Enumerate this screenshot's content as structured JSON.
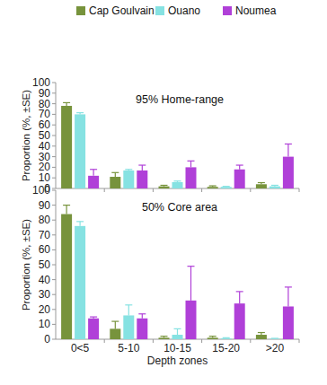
{
  "chart_data": [
    {
      "type": "bar",
      "title": "95% Home-range",
      "categories": [
        "0<5",
        "5-10",
        "10-15",
        "15-20",
        ">20"
      ],
      "series": [
        {
          "name": "Cap Goulvain",
          "color": "#77933c",
          "values": [
            78,
            11,
            2,
            1.5,
            4
          ],
          "errors": [
            3,
            4,
            1,
            1,
            1.5
          ]
        },
        {
          "name": "Ouano",
          "color": "#86e2e2",
          "values": [
            70,
            17,
            6,
            1.5,
            2
          ],
          "errors": [
            1.5,
            1,
            1,
            0.5,
            1
          ]
        },
        {
          "name": "Noumea",
          "color": "#b040d8",
          "values": [
            12,
            17,
            20,
            18,
            30
          ],
          "errors": [
            6,
            5,
            6,
            4,
            12
          ]
        }
      ],
      "y_label": "Proportion (%, ±SE)",
      "ylim": [
        0,
        100
      ],
      "yticks": [
        0,
        10,
        20,
        30,
        40,
        50,
        60,
        70,
        80,
        90,
        100
      ],
      "legend": "top",
      "tick_labels": "y"
    },
    {
      "type": "bar",
      "title": "50% Core area",
      "categories": [
        "0<5",
        "5-10",
        "10-15",
        "15-20",
        ">20"
      ],
      "series": [
        {
          "color": "#77933c",
          "values": [
            84,
            7,
            1,
            1,
            3
          ],
          "errors": [
            6,
            5,
            1,
            1,
            1.5
          ]
        },
        {
          "color": "#86e2e2",
          "values": [
            76,
            16,
            3,
            0.5,
            0.3
          ],
          "errors": [
            3,
            7,
            4,
            0.5,
            0.3
          ]
        },
        {
          "color": "#b040d8",
          "values": [
            14,
            14,
            26,
            24,
            22
          ],
          "errors": [
            1,
            3,
            23,
            8,
            13
          ]
        }
      ],
      "x_label": "Depth zones",
      "y_label": "Proportion (%, ±SE)",
      "ylim": [
        0,
        100
      ],
      "yticks": [
        0,
        10,
        20,
        30,
        40,
        50,
        60,
        70,
        80,
        90,
        100
      ]
    }
  ]
}
